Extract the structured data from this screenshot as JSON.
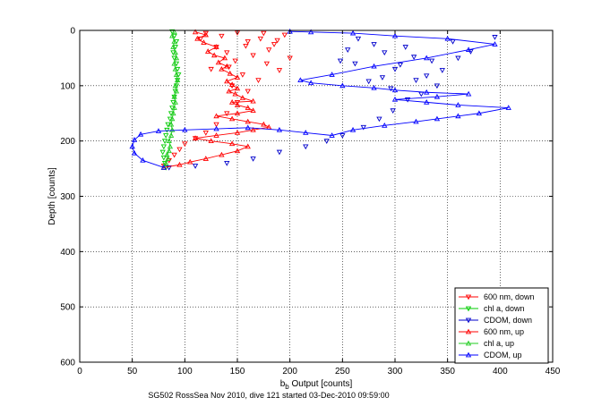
{
  "chart_data": {
    "type": "scatter",
    "title": "",
    "xlabel": "b",
    "xlabel_sub": "b",
    "xlabel_rest": " Output [counts]",
    "ylabel": "Depth [counts]",
    "caption": "SG502 RossSea Nov 2010, dive 121 started 03-Dec-2010 09:59:00",
    "xlim": [
      0,
      450
    ],
    "ylim": [
      0,
      600
    ],
    "y_reversed": true,
    "grid": true,
    "legend_position": "bottom-right",
    "xticks": [
      0,
      50,
      100,
      150,
      200,
      250,
      300,
      350,
      400,
      450
    ],
    "yticks": [
      0,
      100,
      200,
      300,
      400,
      500,
      600
    ],
    "series": [
      {
        "name": "600 nm, down",
        "color": "#ff0000",
        "marker": "triangle-down",
        "line": false,
        "points": [
          [
            120,
            5
          ],
          [
            135,
            10
          ],
          [
            150,
            4
          ],
          [
            160,
            20
          ],
          [
            172,
            15
          ],
          [
            180,
            35
          ],
          [
            195,
            8
          ],
          [
            165,
            45
          ],
          [
            148,
            55
          ],
          [
            178,
            60
          ],
          [
            190,
            72
          ],
          [
            130,
            30
          ],
          [
            140,
            40
          ],
          [
            155,
            80
          ],
          [
            170,
            90
          ],
          [
            125,
            70
          ],
          [
            185,
            25
          ],
          [
            200,
            50
          ],
          [
            115,
            15
          ],
          [
            145,
            100
          ],
          [
            160,
            110
          ],
          [
            150,
            130
          ],
          [
            140,
            150
          ],
          [
            130,
            170
          ],
          [
            120,
            185
          ],
          [
            110,
            195
          ],
          [
            100,
            205
          ],
          [
            95,
            215
          ],
          [
            90,
            225
          ],
          [
            85,
            235
          ],
          [
            80,
            245
          ],
          [
            175,
            5
          ],
          [
            188,
            18
          ],
          [
            142,
            66
          ],
          [
            158,
            28
          ]
        ]
      },
      {
        "name": "chl a, down",
        "color": "#00cc00",
        "marker": "triangle-down",
        "line": false,
        "points": [
          [
            88,
            2
          ],
          [
            90,
            10
          ],
          [
            92,
            20
          ],
          [
            91,
            30
          ],
          [
            89,
            40
          ],
          [
            90,
            50
          ],
          [
            92,
            60
          ],
          [
            93,
            70
          ],
          [
            94,
            80
          ],
          [
            93,
            90
          ],
          [
            92,
            100
          ],
          [
            91,
            110
          ],
          [
            90,
            120
          ],
          [
            89,
            130
          ],
          [
            88,
            140
          ],
          [
            87,
            150
          ],
          [
            86,
            160
          ],
          [
            84,
            170
          ],
          [
            83,
            180
          ],
          [
            82,
            190
          ],
          [
            81,
            200
          ],
          [
            80,
            210
          ],
          [
            79,
            220
          ],
          [
            80,
            230
          ],
          [
            81,
            240
          ],
          [
            82,
            248
          ]
        ]
      },
      {
        "name": "CDOM, down",
        "color": "#0000cc",
        "marker": "triangle-down",
        "line": false,
        "points": [
          [
            395,
            12
          ],
          [
            355,
            20
          ],
          [
            372,
            38
          ],
          [
            335,
            55
          ],
          [
            318,
            48
          ],
          [
            300,
            70
          ],
          [
            288,
            85
          ],
          [
            275,
            92
          ],
          [
            262,
            60
          ],
          [
            345,
            72
          ],
          [
            310,
            30
          ],
          [
            290,
            40
          ],
          [
            265,
            15
          ],
          [
            280,
            25
          ],
          [
            320,
            90
          ],
          [
            305,
            62
          ],
          [
            330,
            82
          ],
          [
            360,
            50
          ],
          [
            340,
            100
          ],
          [
            296,
            105
          ],
          [
            255,
            35
          ],
          [
            248,
            55
          ],
          [
            325,
            115
          ],
          [
            312,
            125
          ],
          [
            298,
            145
          ],
          [
            285,
            160
          ],
          [
            270,
            175
          ],
          [
            250,
            190
          ],
          [
            235,
            200
          ],
          [
            215,
            210
          ],
          [
            190,
            220
          ],
          [
            165,
            232
          ],
          [
            140,
            240
          ],
          [
            110,
            245
          ],
          [
            85,
            248
          ]
        ]
      },
      {
        "name": "600 nm, up",
        "color": "#ff0000",
        "marker": "triangle-up",
        "line": true,
        "points": [
          [
            80,
            248
          ],
          [
            95,
            243
          ],
          [
            105,
            238
          ],
          [
            120,
            232
          ],
          [
            135,
            225
          ],
          [
            150,
            218
          ],
          [
            160,
            210
          ],
          [
            145,
            205
          ],
          [
            125,
            200
          ],
          [
            110,
            195
          ],
          [
            130,
            190
          ],
          [
            150,
            185
          ],
          [
            165,
            180
          ],
          [
            180,
            175
          ],
          [
            175,
            170
          ],
          [
            160,
            165
          ],
          [
            145,
            160
          ],
          [
            130,
            155
          ],
          [
            150,
            150
          ],
          [
            165,
            145
          ],
          [
            160,
            140
          ],
          [
            150,
            135
          ],
          [
            145,
            130
          ],
          [
            165,
            128
          ],
          [
            155,
            122
          ],
          [
            148,
            115
          ],
          [
            142,
            110
          ],
          [
            150,
            105
          ],
          [
            145,
            98
          ],
          [
            140,
            92
          ],
          [
            150,
            85
          ],
          [
            143,
            78
          ],
          [
            135,
            70
          ],
          [
            140,
            65
          ],
          [
            132,
            58
          ],
          [
            138,
            50
          ],
          [
            128,
            45
          ],
          [
            122,
            38
          ],
          [
            130,
            30
          ],
          [
            118,
            22
          ],
          [
            112,
            15
          ],
          [
            120,
            8
          ],
          [
            110,
            3
          ]
        ]
      },
      {
        "name": "chl a, up",
        "color": "#22cc22",
        "marker": "triangle-up",
        "line": true,
        "points": [
          [
            80,
            248
          ],
          [
            82,
            240
          ],
          [
            84,
            232
          ],
          [
            83,
            225
          ],
          [
            85,
            218
          ],
          [
            86,
            210
          ],
          [
            85,
            200
          ],
          [
            87,
            190
          ],
          [
            88,
            180
          ],
          [
            87,
            170
          ],
          [
            88,
            160
          ],
          [
            89,
            150
          ],
          [
            90,
            140
          ],
          [
            91,
            130
          ],
          [
            90,
            120
          ],
          [
            92,
            110
          ],
          [
            91,
            100
          ],
          [
            93,
            90
          ],
          [
            92,
            80
          ],
          [
            91,
            70
          ],
          [
            90,
            60
          ],
          [
            92,
            50
          ],
          [
            91,
            40
          ],
          [
            89,
            30
          ],
          [
            90,
            20
          ],
          [
            88,
            10
          ],
          [
            90,
            3
          ]
        ]
      },
      {
        "name": "CDOM, up",
        "color": "#0000ff",
        "marker": "triangle-up",
        "line": true,
        "points": [
          [
            80,
            248
          ],
          [
            60,
            235
          ],
          [
            52,
            222
          ],
          [
            50,
            210
          ],
          [
            52,
            198
          ],
          [
            58,
            188
          ],
          [
            75,
            182
          ],
          [
            100,
            180
          ],
          [
            130,
            178
          ],
          [
            160,
            176
          ],
          [
            190,
            180
          ],
          [
            215,
            185
          ],
          [
            240,
            190
          ],
          [
            260,
            180
          ],
          [
            290,
            172
          ],
          [
            320,
            165
          ],
          [
            340,
            160
          ],
          [
            360,
            155
          ],
          [
            380,
            150
          ],
          [
            408,
            140
          ],
          [
            360,
            135
          ],
          [
            330,
            130
          ],
          [
            300,
            125
          ],
          [
            340,
            120
          ],
          [
            370,
            115
          ],
          [
            330,
            112
          ],
          [
            300,
            108
          ],
          [
            280,
            104
          ],
          [
            250,
            100
          ],
          [
            220,
            95
          ],
          [
            210,
            90
          ],
          [
            240,
            80
          ],
          [
            280,
            65
          ],
          [
            330,
            50
          ],
          [
            370,
            35
          ],
          [
            395,
            25
          ],
          [
            350,
            15
          ],
          [
            300,
            10
          ],
          [
            260,
            5
          ],
          [
            220,
            3
          ],
          [
            200,
            2
          ]
        ]
      }
    ]
  }
}
